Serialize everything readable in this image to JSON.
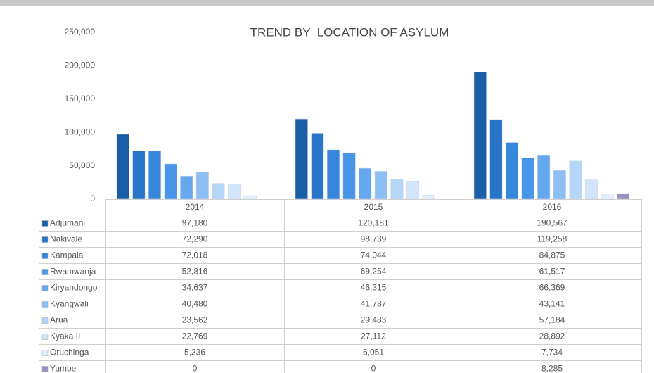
{
  "chart_data": {
    "type": "bar",
    "title": "TREND BY  LOCATION OF ASYLUM",
    "categories": [
      "2014",
      "2015",
      "2016"
    ],
    "ylim": [
      0,
      250000
    ],
    "yticks": [
      {
        "value": 0,
        "label": "0"
      },
      {
        "value": 50000,
        "label": "50,000"
      },
      {
        "value": 100000,
        "label": "100,000"
      },
      {
        "value": 150000,
        "label": "150,000"
      },
      {
        "value": 200000,
        "label": "200,000"
      },
      {
        "value": 250000,
        "label": "250,000"
      }
    ],
    "series": [
      {
        "name": "Adjumani",
        "color": "#1b5ea8",
        "values": [
          97180,
          120181,
          190567
        ],
        "value_labels": [
          "97,180",
          "120,181",
          "190,567"
        ]
      },
      {
        "name": "Nakivale",
        "color": "#2874c8",
        "values": [
          72290,
          98739,
          119258
        ],
        "value_labels": [
          "72,290",
          "98,739",
          "119,258"
        ]
      },
      {
        "name": "Kampala",
        "color": "#3686dc",
        "values": [
          72018,
          74044,
          84875
        ],
        "value_labels": [
          "72,018",
          "74,044",
          "84,875"
        ]
      },
      {
        "name": "Rwamwanja",
        "color": "#4895ea",
        "values": [
          52816,
          69254,
          61517
        ],
        "value_labels": [
          "52,816",
          "69,254",
          "61,517"
        ]
      },
      {
        "name": "Kiryandongo",
        "color": "#66a8f0",
        "values": [
          34637,
          46315,
          66369
        ],
        "value_labels": [
          "34,637",
          "46,315",
          "66,369"
        ]
      },
      {
        "name": "Kyangwali",
        "color": "#8dbff4",
        "values": [
          40480,
          41787,
          43141
        ],
        "value_labels": [
          "40,480",
          "41,787",
          "43,141"
        ]
      },
      {
        "name": "Arua",
        "color": "#b6d6f8",
        "values": [
          23562,
          29483,
          57184
        ],
        "value_labels": [
          "23,562",
          "29,483",
          "57,184"
        ]
      },
      {
        "name": "Kyaka II",
        "color": "#d2e5fa",
        "values": [
          22769,
          27112,
          28892
        ],
        "value_labels": [
          "22,769",
          "27,112",
          "28,892"
        ]
      },
      {
        "name": "Oruchinga",
        "color": "#e6f0fc",
        "values": [
          5236,
          6051,
          7734
        ],
        "value_labels": [
          "5,236",
          "6,051",
          "7,734"
        ]
      },
      {
        "name": "Yumbe",
        "color": "#9a91bf",
        "values": [
          0,
          0,
          8285
        ],
        "value_labels": [
          "0",
          "0",
          "8,285"
        ]
      }
    ]
  }
}
